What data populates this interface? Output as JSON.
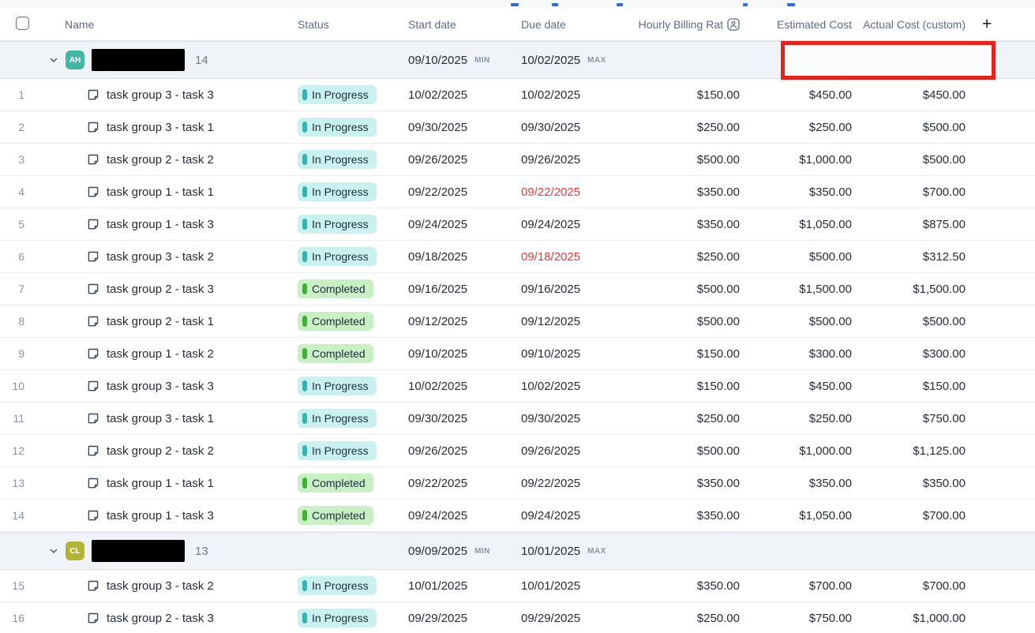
{
  "header": {
    "columns": {
      "name": "Name",
      "status": "Status",
      "start": "Start date",
      "due": "Due date",
      "rate": "Hourly Billing Rat",
      "estimated": "Estimated Cost",
      "actual": "Actual Cost (custom)",
      "add": "+"
    },
    "rate_icon": "assignee-person-icon"
  },
  "status_styles": {
    "In Progress": {
      "bg": "#c8f1ef",
      "pill": "#38b2ac"
    },
    "Completed": {
      "bg": "#c9efc4",
      "pill": "#43ad3c"
    }
  },
  "annotation": {
    "highlight_color": "#e8211d",
    "highlighted_cells": "group-1 estimated and actual cost"
  },
  "groups": [
    {
      "initials": "AH",
      "avatar_color": "#3fb9a5",
      "name_redacted": true,
      "count": "14",
      "start": "09/10/2025",
      "start_tag": "MIN",
      "due": "10/02/2025",
      "due_tag": "MAX",
      "highlighted": true,
      "tasks": [
        {
          "num": "1",
          "name": "task group 3 - task 3",
          "status": "In Progress",
          "start": "10/02/2025",
          "due": "10/02/2025",
          "due_red": false,
          "rate": "$150.00",
          "estimated": "$450.00",
          "actual": "$450.00"
        },
        {
          "num": "2",
          "name": "task group 3 - task 1",
          "status": "In Progress",
          "start": "09/30/2025",
          "due": "09/30/2025",
          "due_red": false,
          "rate": "$250.00",
          "estimated": "$250.00",
          "actual": "$500.00"
        },
        {
          "num": "3",
          "name": "task group 2 - task 2",
          "status": "In Progress",
          "start": "09/26/2025",
          "due": "09/26/2025",
          "due_red": false,
          "rate": "$500.00",
          "estimated": "$1,000.00",
          "actual": "$500.00"
        },
        {
          "num": "4",
          "name": "task group 1 - task 1",
          "status": "In Progress",
          "start": "09/22/2025",
          "due": "09/22/2025",
          "due_red": true,
          "rate": "$350.00",
          "estimated": "$350.00",
          "actual": "$700.00"
        },
        {
          "num": "5",
          "name": "task group 1 - task 3",
          "status": "In Progress",
          "start": "09/24/2025",
          "due": "09/24/2025",
          "due_red": false,
          "rate": "$350.00",
          "estimated": "$1,050.00",
          "actual": "$875.00"
        },
        {
          "num": "6",
          "name": "task group 3 - task 2",
          "status": "In Progress",
          "start": "09/18/2025",
          "due": "09/18/2025",
          "due_red": true,
          "rate": "$250.00",
          "estimated": "$500.00",
          "actual": "$312.50"
        },
        {
          "num": "7",
          "name": "task group 2 - task 3",
          "status": "Completed",
          "start": "09/16/2025",
          "due": "09/16/2025",
          "due_red": false,
          "rate": "$500.00",
          "estimated": "$1,500.00",
          "actual": "$1,500.00"
        },
        {
          "num": "8",
          "name": "task group 2 - task 1",
          "status": "Completed",
          "start": "09/12/2025",
          "due": "09/12/2025",
          "due_red": false,
          "rate": "$500.00",
          "estimated": "$500.00",
          "actual": "$500.00"
        },
        {
          "num": "9",
          "name": "task group 1 - task 2",
          "status": "Completed",
          "start": "09/10/2025",
          "due": "09/10/2025",
          "due_red": false,
          "rate": "$150.00",
          "estimated": "$300.00",
          "actual": "$300.00"
        },
        {
          "num": "10",
          "name": "task group 3 - task 3",
          "status": "In Progress",
          "start": "10/02/2025",
          "due": "10/02/2025",
          "due_red": false,
          "rate": "$150.00",
          "estimated": "$450.00",
          "actual": "$150.00"
        },
        {
          "num": "11",
          "name": "task group 3 - task 1",
          "status": "In Progress",
          "start": "09/30/2025",
          "due": "09/30/2025",
          "due_red": false,
          "rate": "$250.00",
          "estimated": "$250.00",
          "actual": "$750.00"
        },
        {
          "num": "12",
          "name": "task group 2 - task 2",
          "status": "In Progress",
          "start": "09/26/2025",
          "due": "09/26/2025",
          "due_red": false,
          "rate": "$500.00",
          "estimated": "$1,000.00",
          "actual": "$1,125.00"
        },
        {
          "num": "13",
          "name": "task group 1 - task 1",
          "status": "Completed",
          "start": "09/22/2025",
          "due": "09/22/2025",
          "due_red": false,
          "rate": "$350.00",
          "estimated": "$350.00",
          "actual": "$350.00"
        },
        {
          "num": "14",
          "name": "task group 1 - task 3",
          "status": "Completed",
          "start": "09/24/2025",
          "due": "09/24/2025",
          "due_red": false,
          "rate": "$350.00",
          "estimated": "$1,050.00",
          "actual": "$700.00"
        }
      ]
    },
    {
      "initials": "CL",
      "avatar_color": "#b2b533",
      "name_redacted": true,
      "count": "13",
      "start": "09/09/2025",
      "start_tag": "MIN",
      "due": "10/01/2025",
      "due_tag": "MAX",
      "highlighted": false,
      "tasks": [
        {
          "num": "15",
          "name": "task group 3 - task 2",
          "status": "In Progress",
          "start": "10/01/2025",
          "due": "10/01/2025",
          "due_red": false,
          "rate": "$350.00",
          "estimated": "$700.00",
          "actual": "$700.00"
        },
        {
          "num": "16",
          "name": "task group 2 - task 3",
          "status": "In Progress",
          "start": "09/29/2025",
          "due": "09/29/2025",
          "due_red": false,
          "rate": "$250.00",
          "estimated": "$750.00",
          "actual": "$1,000.00"
        }
      ]
    }
  ]
}
